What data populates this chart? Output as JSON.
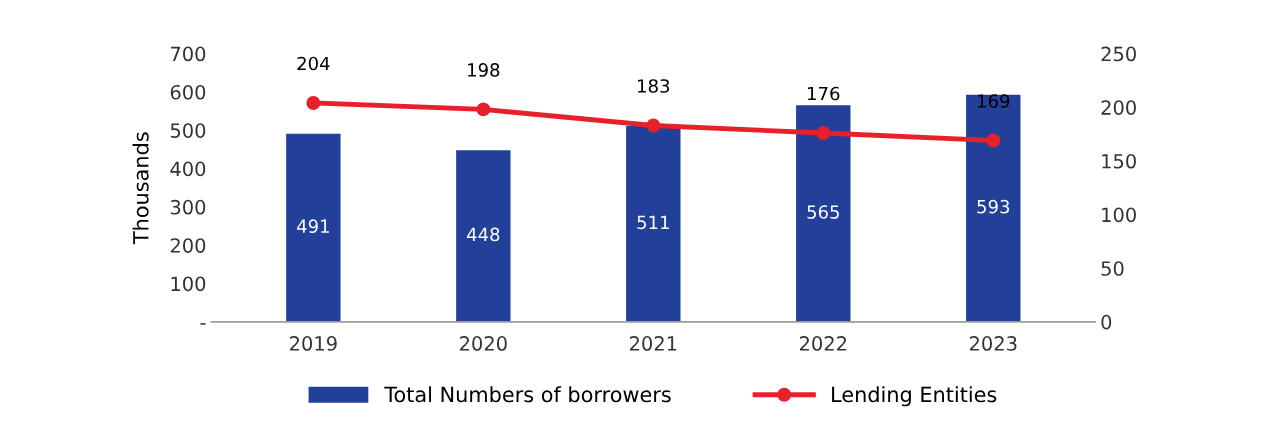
{
  "chart_data": {
    "type": "bar",
    "ylabel": "Thousands",
    "categories": [
      "2019",
      "2020",
      "2021",
      "2022",
      "2023"
    ],
    "series": [
      {
        "name": "Total Numbers of borrowers",
        "color": "#22409a",
        "values": [
          491,
          448,
          511,
          565,
          593
        ]
      },
      {
        "name": "Lending Entities",
        "type": "line",
        "axis": "y2",
        "color": "#e8202a",
        "values": [
          204,
          198,
          183,
          176,
          169
        ],
        "marker": "circle"
      }
    ],
    "ylim": [
      0,
      700
    ],
    "yticks": [
      {
        "value": 0,
        "label": "-"
      },
      100,
      200,
      300,
      400,
      500,
      600,
      700
    ],
    "y2lim": [
      0,
      250
    ],
    "y2ticks": [
      0,
      50,
      100,
      150,
      200,
      250
    ],
    "data_labels": true,
    "legend": "bottom",
    "grid": false
  }
}
